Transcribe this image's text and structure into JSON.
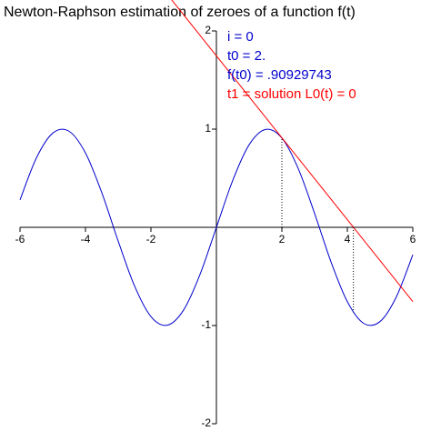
{
  "chart_data": {
    "type": "line",
    "title": "Newton-Raphson estimation of zeroes of a function f(t)",
    "annotations": [
      {
        "text": "i = 0",
        "color": "#0000cc"
      },
      {
        "text": "t0 = 2.",
        "color": "#0000cc"
      },
      {
        "text": "f(t0) = .90929743",
        "color": "#0000cc"
      },
      {
        "text": "t1 = solution L0(t) = 0",
        "color": "#ff0000"
      }
    ],
    "xlim": [
      -6,
      6
    ],
    "ylim": [
      -2,
      2
    ],
    "xticks": [
      -6,
      -4,
      -2,
      2,
      4,
      6
    ],
    "yticks": [
      -2,
      -1,
      1,
      2
    ],
    "series": [
      {
        "color": "#0000cc",
        "style": "solid",
        "x": [
          -6,
          -5.5,
          -5,
          -4.5,
          -4,
          -3.5,
          -3,
          -2.5,
          -2,
          -1.5,
          -1,
          -0.5,
          0,
          0.5,
          1,
          1.5,
          2,
          2.5,
          3,
          3.5,
          4,
          4.5,
          5,
          5.5,
          6
        ],
        "values": [
          0.279,
          0.706,
          0.959,
          0.978,
          0.757,
          0.351,
          -0.141,
          -0.598,
          -0.909,
          -0.997,
          -0.841,
          -0.479,
          0,
          0.479,
          0.841,
          0.997,
          0.909,
          0.598,
          0.141,
          -0.351,
          -0.757,
          -0.978,
          -0.959,
          -0.706,
          -0.279
        ]
      },
      {
        "color": "#ff0000",
        "style": "solid",
        "x": [
          -1.4,
          6
        ],
        "values": [
          2.33,
          -0.756
        ]
      },
      {
        "color": "#000000",
        "style": "dotted",
        "x": [
          2,
          2
        ],
        "values": [
          0,
          0.909
        ]
      },
      {
        "color": "#000000",
        "style": "dotted",
        "x": [
          4.185,
          4.185
        ],
        "values": [
          0,
          -0.866
        ]
      }
    ]
  }
}
